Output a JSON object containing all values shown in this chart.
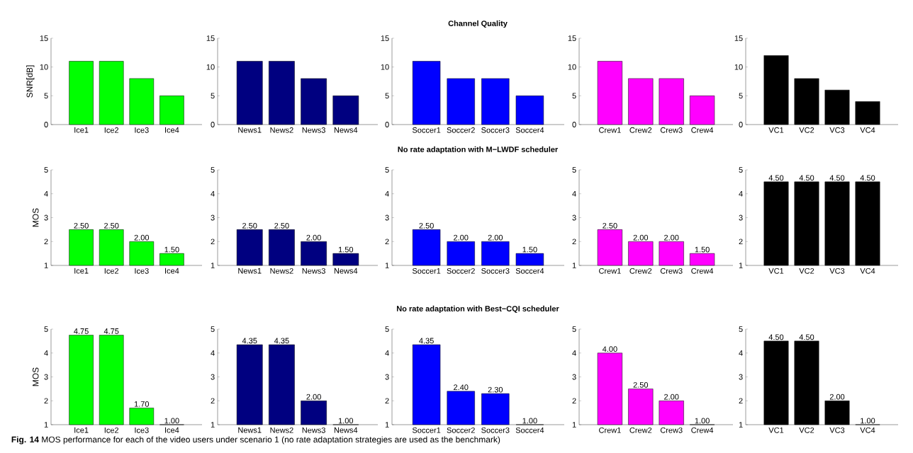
{
  "chart_data": [
    {
      "type": "bar",
      "ylabel": "SNR[dB]",
      "categories": [
        "Ice1",
        "Ice2",
        "Ice3",
        "Ice4"
      ],
      "values": [
        11,
        11,
        8,
        5
      ],
      "color": "#00ff00",
      "ylim": [
        0,
        15
      ],
      "yticks": [
        0,
        5,
        10,
        15
      ]
    },
    {
      "type": "bar",
      "categories": [
        "News1",
        "News2",
        "News3",
        "News4"
      ],
      "values": [
        11,
        11,
        8,
        5
      ],
      "color": "#000080",
      "ylim": [
        0,
        15
      ],
      "yticks": [
        0,
        5,
        10,
        15
      ]
    },
    {
      "type": "bar",
      "title": "Channel Quality",
      "categories": [
        "Soccer1",
        "Soccer2",
        "Soccer3",
        "Soccer4"
      ],
      "values": [
        11,
        8,
        8,
        5
      ],
      "color": "#0000ff",
      "ylim": [
        0,
        15
      ],
      "yticks": [
        0,
        5,
        10,
        15
      ]
    },
    {
      "type": "bar",
      "categories": [
        "Crew1",
        "Crew2",
        "Crew3",
        "Crew4"
      ],
      "values": [
        11,
        8,
        8,
        5
      ],
      "color": "#ff00ff",
      "ylim": [
        0,
        15
      ],
      "yticks": [
        0,
        5,
        10,
        15
      ]
    },
    {
      "type": "bar",
      "categories": [
        "VC1",
        "VC2",
        "VC3",
        "VC4"
      ],
      "values": [
        12,
        8,
        6,
        4
      ],
      "color": "#000000",
      "ylim": [
        0,
        15
      ],
      "yticks": [
        0,
        5,
        10,
        15
      ]
    },
    {
      "type": "bar",
      "ylabel": "MOS",
      "categories": [
        "Ice1",
        "Ice2",
        "Ice3",
        "Ice4"
      ],
      "values": [
        2.5,
        2.5,
        2.0,
        1.5
      ],
      "value_labels": [
        "2.50",
        "2.50",
        "2.00",
        "1.50"
      ],
      "color": "#00ff00",
      "ylim": [
        1,
        5
      ],
      "yticks": [
        1,
        2,
        3,
        4,
        5
      ]
    },
    {
      "type": "bar",
      "categories": [
        "News1",
        "News2",
        "News3",
        "News4"
      ],
      "values": [
        2.5,
        2.5,
        2.0,
        1.5
      ],
      "value_labels": [
        "2.50",
        "2.50",
        "2.00",
        "1.50"
      ],
      "color": "#000080",
      "ylim": [
        1,
        5
      ],
      "yticks": [
        1,
        2,
        3,
        4,
        5
      ]
    },
    {
      "type": "bar",
      "title": "No rate adaptation with M−LWDF scheduler",
      "categories": [
        "Soccer1",
        "Soccer2",
        "Soccer3",
        "Soccer4"
      ],
      "values": [
        2.5,
        2.0,
        2.0,
        1.5
      ],
      "value_labels": [
        "2.50",
        "2.00",
        "2.00",
        "1.50"
      ],
      "color": "#0000ff",
      "ylim": [
        1,
        5
      ],
      "yticks": [
        1,
        2,
        3,
        4,
        5
      ]
    },
    {
      "type": "bar",
      "categories": [
        "Crew1",
        "Crew2",
        "Crew3",
        "Crew4"
      ],
      "values": [
        2.5,
        2.0,
        2.0,
        1.5
      ],
      "value_labels": [
        "2.50",
        "2.00",
        "2.00",
        "1.50"
      ],
      "color": "#ff00ff",
      "ylim": [
        1,
        5
      ],
      "yticks": [
        1,
        2,
        3,
        4,
        5
      ]
    },
    {
      "type": "bar",
      "categories": [
        "VC1",
        "VC2",
        "VC3",
        "VC4"
      ],
      "values": [
        4.5,
        4.5,
        4.5,
        4.5
      ],
      "value_labels": [
        "4.50",
        "4.50",
        "4.50",
        "4.50"
      ],
      "color": "#000000",
      "ylim": [
        1,
        5
      ],
      "yticks": [
        1,
        2,
        3,
        4,
        5
      ]
    },
    {
      "type": "bar",
      "ylabel": "MOS",
      "categories": [
        "Ice1",
        "Ice2",
        "Ice3",
        "Ice4"
      ],
      "values": [
        4.75,
        4.75,
        1.7,
        1.0
      ],
      "value_labels": [
        "4.75",
        "4.75",
        "1.70",
        "1.00"
      ],
      "color": "#00ff00",
      "ylim": [
        1,
        5
      ],
      "yticks": [
        1,
        2,
        3,
        4,
        5
      ]
    },
    {
      "type": "bar",
      "categories": [
        "News1",
        "News2",
        "News3",
        "News4"
      ],
      "values": [
        4.35,
        4.35,
        2.0,
        1.0
      ],
      "value_labels": [
        "4.35",
        "4.35",
        "2.00",
        "1.00"
      ],
      "color": "#000080",
      "ylim": [
        1,
        5
      ],
      "yticks": [
        1,
        2,
        3,
        4,
        5
      ]
    },
    {
      "type": "bar",
      "title": "No rate adaptation with Best−CQI scheduler",
      "categories": [
        "Soccer1",
        "Soccer2",
        "Soccer3",
        "Soccer4"
      ],
      "values": [
        4.35,
        2.4,
        2.3,
        1.0
      ],
      "value_labels": [
        "4.35",
        "2.40",
        "2.30",
        "1.00"
      ],
      "color": "#0000ff",
      "ylim": [
        1,
        5
      ],
      "yticks": [
        1,
        2,
        3,
        4,
        5
      ]
    },
    {
      "type": "bar",
      "categories": [
        "Crew1",
        "Crew2",
        "Crew3",
        "Crew4"
      ],
      "values": [
        4.0,
        2.5,
        2.0,
        1.0
      ],
      "value_labels": [
        "4.00",
        "2.50",
        "2.00",
        "1.00"
      ],
      "color": "#ff00ff",
      "ylim": [
        1,
        5
      ],
      "yticks": [
        1,
        2,
        3,
        4,
        5
      ]
    },
    {
      "type": "bar",
      "categories": [
        "VC1",
        "VC2",
        "VC3",
        "VC4"
      ],
      "values": [
        4.5,
        4.5,
        2.0,
        1.0
      ],
      "value_labels": [
        "4.50",
        "4.50",
        "2.00",
        "1.00"
      ],
      "color": "#000000",
      "ylim": [
        1,
        5
      ],
      "yticks": [
        1,
        2,
        3,
        4,
        5
      ],
      "annotations": [
        "**Fig. 14** MOS performance for each of the video users under scenario 1 (no rate adaptation strategies are used as the benchmark)"
      ]
    }
  ]
}
